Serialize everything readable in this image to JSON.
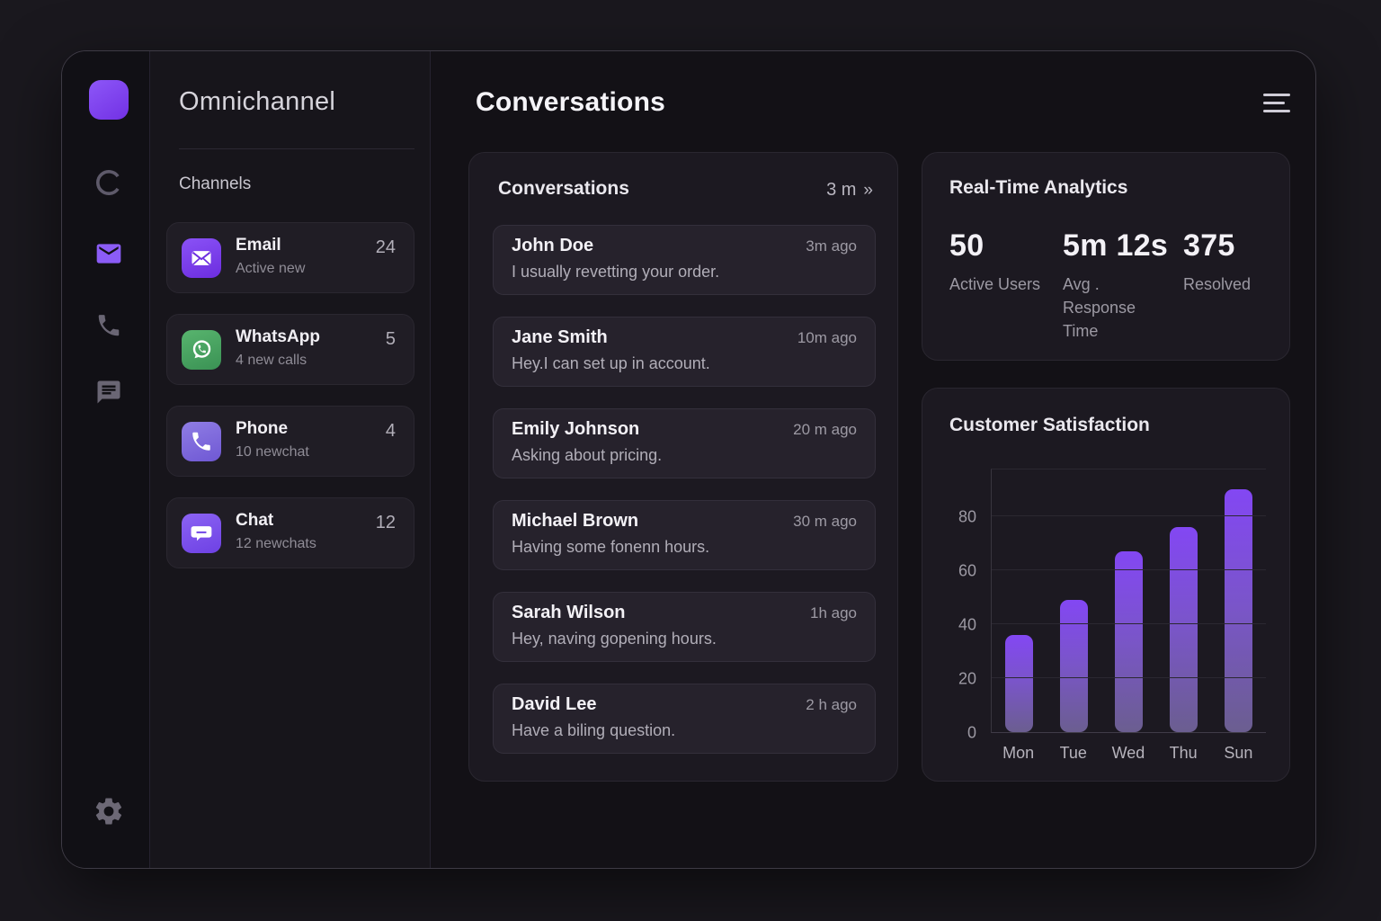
{
  "app": {
    "window_title": "Omnichannel dashboard"
  },
  "colors": {
    "accent_purple": "#7c3aed",
    "whatsapp_green": "#45a05f",
    "bar_top": "#8347f3",
    "bar_bottom": "#6b5e90"
  },
  "rail": {
    "icons": [
      "loader-c-icon",
      "email-icon",
      "phone-icon",
      "chat-icon"
    ],
    "bottom_icon": "settings-gear-icon"
  },
  "sidebar": {
    "title": "Omnichannel",
    "section_label": "Channels",
    "channels": [
      {
        "name": "Email",
        "count": "24",
        "subtitle": "Active new",
        "icon": "email-icon"
      },
      {
        "name": "WhatsApp",
        "count": "5",
        "subtitle": "4 new calls",
        "icon": "whatsapp-icon"
      },
      {
        "name": "Phone",
        "count": "4",
        "subtitle": "10 newchat",
        "icon": "phone-icon"
      },
      {
        "name": "Chat",
        "count": "12",
        "subtitle": "12 newchats",
        "icon": "chat-icon"
      }
    ]
  },
  "header": {
    "title": "Conversations",
    "menu_icon": "hamburger-menu-icon"
  },
  "conversations": {
    "title": "Conversations",
    "meta": "3 m",
    "chevron_glyph": "»",
    "items": [
      {
        "name": "John Doe",
        "time": "3m ago",
        "message": "I usually revetting your order."
      },
      {
        "name": "Jane Smith",
        "time": "10m ago",
        "message": "Hey.I can set up in account."
      },
      {
        "name": "Emily Johnson",
        "time": "20 m ago",
        "message": "Asking about pricing."
      },
      {
        "name": "Michael Brown",
        "time": "30 m ago",
        "message": "Having some fonenn hours."
      },
      {
        "name": "Sarah Wilson",
        "time": "1h ago",
        "message": "Hey, naving gopening hours."
      },
      {
        "name": "David Lee",
        "time": "2 h ago",
        "message": "Have a biling question."
      }
    ]
  },
  "analytics": {
    "title": "Real-Time Analytics",
    "stats": [
      {
        "value": "50",
        "label": "Active Users"
      },
      {
        "value": "5m 12s",
        "label": "Avg . Response Time"
      },
      {
        "value": "375",
        "label": "Resolved"
      }
    ]
  },
  "chart_data": {
    "type": "bar",
    "title": "Customer Satisfaction",
    "categories": [
      "Mon",
      "Tue",
      "Wed",
      "Thu",
      "Sun"
    ],
    "values": [
      36,
      49,
      67,
      76,
      90
    ],
    "xlabel": "",
    "ylabel": "",
    "yticks": [
      0,
      20,
      40,
      60,
      80
    ],
    "ylim": [
      0,
      98
    ],
    "grid": true,
    "legend": false,
    "bar_gradient": [
      "#8347f3",
      "#6b5e90"
    ]
  }
}
